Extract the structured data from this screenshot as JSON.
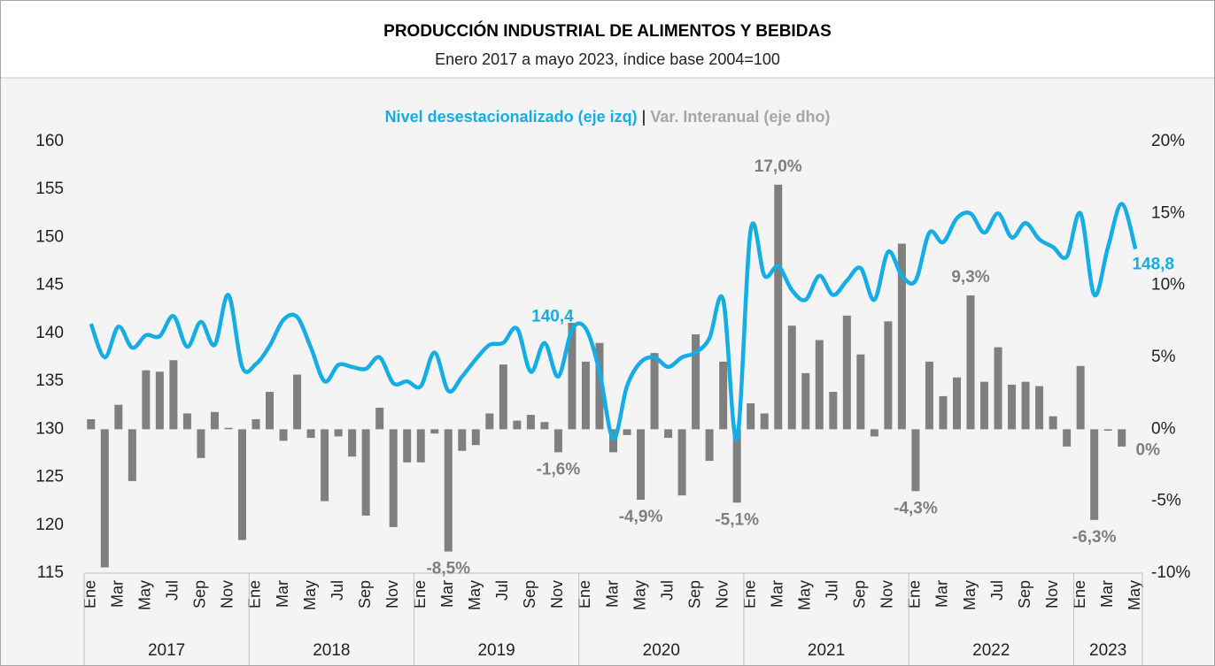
{
  "chart_data": {
    "type": "bar_line",
    "title": "PRODUCCIÓN INDUSTRIAL DE ALIMENTOS Y BEBIDAS",
    "subtitle": "Enero 2017 a mayo 2023, índice base 2004=100",
    "legend_separator": "|",
    "categories": [
      "Ene",
      null,
      "Mar",
      null,
      "May",
      null,
      "Jul",
      null,
      "Sep",
      null,
      "Nov",
      null,
      "Ene",
      null,
      "Mar",
      null,
      "May",
      null,
      "Jul",
      null,
      "Sep",
      null,
      "Nov",
      null,
      "Ene",
      null,
      "Mar",
      null,
      "May",
      null,
      "Jul",
      null,
      "Sep",
      null,
      "Nov",
      null,
      "Ene",
      null,
      "Mar",
      null,
      "May",
      null,
      "Jul",
      null,
      "Sep",
      null,
      "Nov",
      null,
      "Ene",
      null,
      "Mar",
      null,
      "May",
      null,
      "Jul",
      null,
      "Sep",
      null,
      "Nov",
      null,
      "Ene",
      null,
      "Mar",
      null,
      "May",
      null,
      "Jul",
      null,
      "Sep",
      null,
      "Nov",
      null,
      "Ene",
      null,
      "Mar",
      null,
      "May"
    ],
    "years": [
      "2017",
      "2018",
      "2019",
      "2020",
      "2021",
      "2022",
      "2023"
    ],
    "ylim": [
      115,
      160
    ],
    "yticks": [
      115,
      120,
      125,
      130,
      135,
      140,
      145,
      150,
      155,
      160
    ],
    "y2lim": [
      -10,
      20
    ],
    "y2ticks": [
      {
        "value": -10,
        "label": "-10%"
      },
      {
        "value": -5,
        "label": "-5%"
      },
      {
        "value": 0,
        "label": "0%"
      },
      {
        "value": 5,
        "label": "5%"
      },
      {
        "value": 10,
        "label": "10%"
      },
      {
        "value": 15,
        "label": "15%"
      },
      {
        "value": 20,
        "label": "20%"
      }
    ],
    "series": [
      {
        "name": "Nivel desestacionalizado (eje izq)",
        "type": "line",
        "color": "#14ade6",
        "values": [
          141.0,
          137.5,
          140.7,
          138.5,
          139.8,
          139.7,
          141.8,
          138.6,
          141.2,
          138.8,
          144.0,
          136.5,
          136.8,
          138.7,
          141.4,
          141.7,
          138.5,
          135.0,
          136.7,
          136.5,
          136.3,
          137.5,
          134.8,
          135.0,
          134.5,
          138.0,
          134.0,
          135.5,
          137.3,
          138.8,
          139.0,
          140.5,
          136.0,
          139.0,
          135.5,
          140.4,
          140.5,
          136.0,
          129.0,
          134.5,
          137.0,
          137.5,
          136.5,
          137.5,
          138.0,
          139.5,
          143.5,
          129.0,
          150.8,
          146.0,
          147.0,
          144.5,
          143.5,
          146.0,
          144.0,
          145.5,
          146.8,
          143.5,
          148.5,
          146.0,
          145.5,
          150.5,
          149.5,
          152.0,
          152.5,
          150.5,
          152.5,
          150.0,
          151.5,
          149.8,
          149.0,
          148.0,
          152.5,
          144.0,
          149.0,
          153.5,
          148.8
        ],
        "value_labels": [
          null,
          null,
          null,
          null,
          null,
          null,
          null,
          null,
          null,
          null,
          null,
          null,
          null,
          null,
          null,
          null,
          null,
          null,
          null,
          null,
          null,
          null,
          null,
          null,
          null,
          null,
          null,
          null,
          null,
          null,
          null,
          null,
          null,
          null,
          null,
          "140,4",
          null,
          null,
          null,
          null,
          null,
          null,
          null,
          null,
          null,
          null,
          null,
          null,
          null,
          null,
          null,
          null,
          null,
          null,
          null,
          null,
          null,
          null,
          null,
          null,
          null,
          null,
          null,
          null,
          null,
          null,
          null,
          null,
          null,
          null,
          null,
          null,
          null,
          null,
          null,
          null,
          "148,8"
        ]
      },
      {
        "name": "Var. Interanual (eje dho)",
        "type": "bar",
        "axis": "y2",
        "color": "#7f7f7f",
        "values": [
          0.7,
          -9.6,
          1.7,
          -3.6,
          4.1,
          4.0,
          4.8,
          1.1,
          -2.0,
          1.2,
          0.1,
          -7.7,
          0.7,
          2.6,
          -0.8,
          3.8,
          -0.6,
          -5.0,
          -0.5,
          -1.9,
          -6.0,
          1.5,
          -6.8,
          -2.3,
          -2.3,
          -0.3,
          -8.5,
          -1.5,
          -1.1,
          1.1,
          4.5,
          0.6,
          1.0,
          0.5,
          -1.6,
          7.4,
          4.7,
          6.0,
          -1.6,
          -0.4,
          -4.9,
          5.3,
          -0.6,
          -4.6,
          6.6,
          -2.2,
          4.7,
          -5.1,
          1.8,
          1.1,
          17.0,
          7.2,
          3.9,
          6.2,
          2.6,
          7.9,
          5.2,
          -0.5,
          7.5,
          12.9,
          -4.3,
          4.7,
          2.3,
          3.6,
          9.3,
          3.3,
          5.7,
          3.1,
          3.3,
          3.0,
          0.9,
          -1.2,
          4.4,
          -6.3,
          -0.1,
          -1.2,
          0
        ],
        "value_labels": [
          null,
          null,
          null,
          null,
          null,
          null,
          null,
          null,
          null,
          null,
          null,
          null,
          null,
          null,
          null,
          null,
          null,
          null,
          null,
          null,
          null,
          null,
          null,
          null,
          null,
          null,
          "-8,5%",
          null,
          null,
          null,
          null,
          null,
          null,
          null,
          "-1,6%",
          null,
          null,
          null,
          null,
          null,
          "-4,9%",
          null,
          null,
          null,
          null,
          null,
          null,
          "-5,1%",
          null,
          null,
          "17,0%",
          null,
          null,
          null,
          null,
          null,
          null,
          null,
          null,
          null,
          "-4,3%",
          null,
          null,
          null,
          "9,3%",
          null,
          null,
          null,
          null,
          null,
          null,
          null,
          null,
          "-6,3%",
          null,
          null,
          "0%"
        ]
      }
    ]
  }
}
